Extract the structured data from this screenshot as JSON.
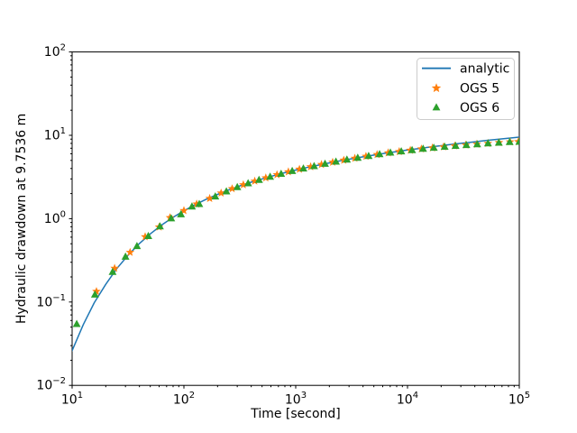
{
  "figure": {
    "background": "#ffffff"
  },
  "chart_data": {
    "type": "line",
    "title": "",
    "xlabel": "Time [second]",
    "ylabel": "Hydraulic drawdown at 9.7536 m",
    "xscale": "log",
    "yscale": "log",
    "xlim": [
      10,
      100000
    ],
    "ylim": [
      0.01,
      100
    ],
    "grid": false,
    "legend": {
      "position": "upper right"
    },
    "xticks": [
      {
        "value": 10,
        "exp": "1"
      },
      {
        "value": 100,
        "exp": "2"
      },
      {
        "value": 1000,
        "exp": "3"
      },
      {
        "value": 10000,
        "exp": "4"
      },
      {
        "value": 100000,
        "exp": "5"
      }
    ],
    "yticks": [
      {
        "value": 100,
        "exp": "2"
      },
      {
        "value": 10,
        "exp": "1"
      },
      {
        "value": 1,
        "exp": "0"
      },
      {
        "value": 0.1,
        "exp": "−1"
      },
      {
        "value": 0.01,
        "exp": "−2"
      }
    ],
    "series": [
      {
        "name": "analytic",
        "kind": "line",
        "color": "#1f77b4",
        "x": [
          10,
          12.6,
          15.8,
          20,
          25.1,
          31.6,
          39.8,
          50.1,
          63.1,
          79.4,
          100,
          126,
          158,
          200,
          251,
          316,
          398,
          501,
          631,
          794,
          1000,
          1259,
          1585,
          1995,
          2512,
          3162,
          3981,
          5012,
          6310,
          7943,
          10000,
          12589,
          15849,
          19953,
          25119,
          31623,
          39811,
          50119,
          63096,
          79433,
          100000
        ],
        "y": [
          0.0261,
          0.0537,
          0.0982,
          0.163,
          0.252,
          0.364,
          0.5,
          0.658,
          0.837,
          1.034,
          1.246,
          1.472,
          1.709,
          1.955,
          2.209,
          2.469,
          2.734,
          3.003,
          3.276,
          3.551,
          3.828,
          4.107,
          4.388,
          4.669,
          4.951,
          5.233,
          5.517,
          5.801,
          6.085,
          6.37,
          6.654,
          6.939,
          7.224,
          7.509,
          7.794,
          8.079,
          8.365,
          8.65,
          8.936,
          9.221,
          9.507
        ]
      },
      {
        "name": "OGS 5",
        "kind": "scatter",
        "marker": "star",
        "color": "#ff7f0e",
        "x": [
          16.5,
          24,
          33,
          45,
          60,
          75,
          100,
          130,
          170,
          215,
          270,
          340,
          430,
          540,
          680,
          860,
          1080,
          1360,
          1700,
          2140,
          2690,
          3380,
          4250,
          5340,
          6710,
          8430,
          10600,
          13300,
          16700,
          21000,
          26400,
          33200,
          41700,
          52400,
          65800,
          82700,
          98000
        ],
        "y": [
          0.134,
          0.254,
          0.394,
          0.607,
          0.794,
          1.03,
          1.25,
          1.5,
          1.75,
          2.03,
          2.29,
          2.55,
          2.82,
          3.09,
          3.37,
          3.65,
          3.92,
          4.2,
          4.47,
          4.75,
          5.03,
          5.31,
          5.6,
          5.88,
          6.16,
          6.38,
          6.62,
          6.87,
          7.07,
          7.27,
          7.47,
          7.65,
          7.83,
          8.0,
          8.18,
          8.34,
          8.39
        ]
      },
      {
        "name": "OGS 6",
        "kind": "scatter",
        "marker": "triangle",
        "color": "#2ca02c",
        "x": [
          11,
          16,
          23,
          30,
          38,
          48,
          61,
          77,
          94,
          118,
          137,
          191,
          240,
          300,
          375,
          470,
          590,
          740,
          930,
          1170,
          1460,
          1830,
          2290,
          2870,
          3590,
          4490,
          5620,
          7030,
          8800,
          11000,
          13800,
          17200,
          21500,
          26900,
          33600,
          42000,
          52500,
          65600,
          82000,
          100000
        ],
        "y": [
          0.0546,
          0.123,
          0.23,
          0.35,
          0.47,
          0.62,
          0.81,
          1.01,
          1.13,
          1.4,
          1.5,
          1.85,
          2.13,
          2.4,
          2.66,
          2.92,
          3.19,
          3.46,
          3.74,
          4.01,
          4.28,
          4.56,
          4.84,
          5.11,
          5.39,
          5.66,
          5.94,
          6.21,
          6.43,
          6.67,
          6.91,
          7.1,
          7.3,
          7.49,
          7.66,
          7.84,
          8.01,
          8.17,
          8.33,
          8.37
        ]
      }
    ]
  }
}
